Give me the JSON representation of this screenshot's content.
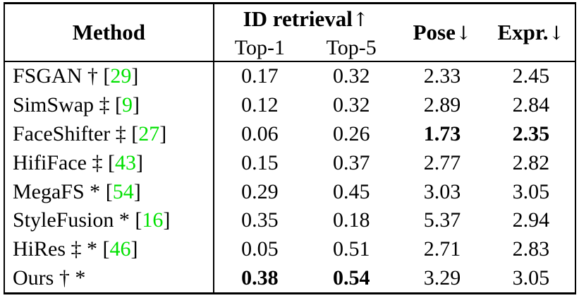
{
  "table": {
    "citation_color": "#00e100",
    "header": {
      "method": "Method",
      "id_retrieval": {
        "label": "ID retrieval",
        "arrow": "↑"
      },
      "top1": "Top-1",
      "top5": "Top-5",
      "pose": {
        "label": "Pose",
        "arrow": "↓"
      },
      "expr": {
        "label": "Expr.",
        "arrow": "↓"
      }
    },
    "rows": [
      {
        "method": "FSGAN †",
        "cite": "29",
        "values": {
          "top1": "0.17",
          "top5": "0.32",
          "pose": "2.33",
          "expr": "2.45"
        },
        "bold": []
      },
      {
        "method": "SimSwap ‡",
        "cite": "9",
        "values": {
          "top1": "0.12",
          "top5": "0.32",
          "pose": "2.89",
          "expr": "2.84"
        },
        "bold": []
      },
      {
        "method": "FaceShifter ‡",
        "cite": "27",
        "values": {
          "top1": "0.06",
          "top5": "0.26",
          "pose": "1.73",
          "expr": "2.35"
        },
        "bold": [
          "pose",
          "expr"
        ]
      },
      {
        "method": "HifiFace ‡",
        "cite": "43",
        "values": {
          "top1": "0.15",
          "top5": "0.37",
          "pose": "2.77",
          "expr": "2.82"
        },
        "bold": []
      },
      {
        "method": "MegaFS *",
        "cite": "54",
        "values": {
          "top1": "0.29",
          "top5": "0.45",
          "pose": "3.03",
          "expr": "3.05"
        },
        "bold": []
      },
      {
        "method": "StyleFusion *",
        "cite": "16",
        "values": {
          "top1": "0.35",
          "top5": "0.18",
          "pose": "5.37",
          "expr": "2.94"
        },
        "bold": []
      },
      {
        "method": "HiRes ‡ *",
        "cite": "46",
        "values": {
          "top1": "0.05",
          "top5": "0.51",
          "pose": "2.71",
          "expr": "2.83"
        },
        "bold": []
      },
      {
        "method": "Ours † *",
        "cite": null,
        "values": {
          "top1": "0.38",
          "top5": "0.54",
          "pose": "3.29",
          "expr": "3.05"
        },
        "bold": [
          "top1",
          "top5"
        ]
      }
    ]
  }
}
